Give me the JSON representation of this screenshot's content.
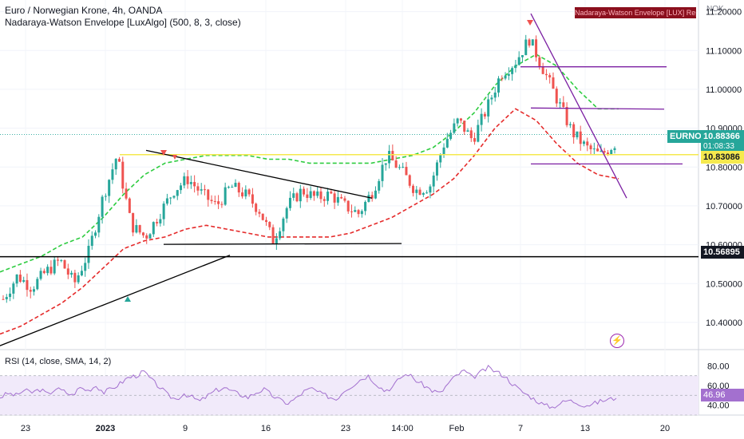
{
  "header": {
    "symbol_line": "Euro / Norwegian Krone, 4h, OANDA",
    "indicator_line": "Nadaraya-Watson Envelope [LuxAlgo] (500, 8, 3, close)",
    "repaint_badge": "Nadaraya-Watson Envelope [LUX] Repaints",
    "currency": "NOK"
  },
  "rsi_panel": {
    "title": "RSI (14, close, SMA, 14, 2)",
    "value_tag": "46.96"
  },
  "price_tags": {
    "symbol": "EURNOK",
    "last": "10.88366",
    "timer": "01:08:33",
    "yellow_level": "10.83086",
    "black_level": "10.56895"
  },
  "colors": {
    "up": "#26a69a",
    "down": "#ef5350",
    "upper_band": "#2ecc40",
    "lower_band": "#e52b2b",
    "trendline": "#000000",
    "channel": "#7b1fa2",
    "yellow": "#f5e94e",
    "rsi": "#a370cf"
  },
  "chart_data": [
    {
      "type": "candlestick",
      "title": "Euro / Norwegian Krone, 4h, OANDA",
      "y_ticks": [
        "11.20000",
        "11.10000",
        "11.00000",
        "10.90000",
        "10.80000",
        "10.70000",
        "10.60000",
        "10.50000",
        "10.40000"
      ],
      "x_ticks": [
        "23",
        "2023",
        "9",
        "16",
        "23",
        "14:00",
        "Feb",
        "7",
        "13",
        "20"
      ],
      "ylim": [
        10.33,
        11.23
      ],
      "ohlc_anchors": [
        [
          10.46,
          10.44
        ],
        [
          10.52,
          10.5
        ],
        [
          10.49,
          10.48
        ],
        [
          10.53,
          10.52
        ],
        [
          10.56,
          10.55
        ],
        [
          10.5,
          10.52
        ],
        [
          10.58,
          10.57
        ],
        [
          10.72,
          10.76
        ],
        [
          10.83,
          10.82
        ],
        [
          10.65,
          10.64
        ],
        [
          10.62,
          10.6
        ],
        [
          10.68,
          10.7
        ],
        [
          10.74,
          10.76
        ],
        [
          10.77,
          10.78
        ],
        [
          10.73,
          10.72
        ],
        [
          10.7,
          10.68
        ],
        [
          10.75,
          10.76
        ],
        [
          10.73,
          10.72
        ],
        [
          10.69,
          10.66
        ],
        [
          10.61,
          10.62
        ],
        [
          10.7,
          10.72
        ],
        [
          10.74,
          10.75
        ],
        [
          10.72,
          10.71
        ],
        [
          10.73,
          10.72
        ],
        [
          10.7,
          10.69
        ],
        [
          10.68,
          10.67
        ],
        [
          10.74,
          10.76
        ],
        [
          10.83,
          10.82
        ],
        [
          10.79,
          10.78
        ],
        [
          10.74,
          10.73
        ],
        [
          10.75,
          10.77
        ],
        [
          10.86,
          10.88
        ],
        [
          10.92,
          10.9
        ],
        [
          10.87,
          10.85
        ],
        [
          10.95,
          10.97
        ],
        [
          11.04,
          11.06
        ],
        [
          11.07,
          11.1
        ],
        [
          11.13,
          11.14
        ],
        [
          11.05,
          11.03
        ],
        [
          10.97,
          10.95
        ],
        [
          10.89,
          10.87
        ],
        [
          10.85,
          10.82
        ],
        [
          10.83,
          10.84
        ],
        [
          10.86,
          10.88
        ]
      ],
      "envelope_upper": [
        10.53,
        10.55,
        10.57,
        10.6,
        10.62,
        10.67,
        10.73,
        10.78,
        10.81,
        10.82,
        10.83,
        10.83,
        10.83,
        10.82,
        10.82,
        10.81,
        10.81,
        10.81,
        10.81,
        10.82,
        10.83,
        10.85,
        10.89,
        10.94,
        11.01,
        11.06,
        11.09,
        11.06,
        11.0,
        10.95,
        10.95
      ],
      "envelope_lower": [
        10.37,
        10.39,
        10.42,
        10.45,
        10.49,
        10.54,
        10.59,
        10.61,
        10.62,
        10.64,
        10.65,
        10.64,
        10.63,
        10.62,
        10.62,
        10.62,
        10.62,
        10.63,
        10.65,
        10.67,
        10.7,
        10.73,
        10.77,
        10.83,
        10.9,
        10.95,
        10.92,
        10.86,
        10.81,
        10.78,
        10.77
      ]
    },
    {
      "type": "line",
      "title": "RSI (14, close, SMA, 14, 2)",
      "y_ticks": [
        "80.00",
        "60.00",
        "40.00"
      ],
      "ylim": [
        30,
        90
      ],
      "values": [
        48,
        52,
        50,
        55,
        53,
        56,
        51,
        57,
        54,
        50,
        58,
        55,
        60,
        53,
        57,
        62,
        68,
        70,
        74,
        65,
        58,
        50,
        46,
        52,
        48,
        44,
        50,
        55,
        58,
        54,
        51,
        48,
        53,
        56,
        50,
        45,
        42,
        47,
        54,
        57,
        52,
        49,
        46,
        55,
        60,
        66,
        70,
        62,
        55,
        58,
        68,
        72,
        65,
        60,
        55,
        52,
        62,
        70,
        75,
        68,
        73,
        78,
        74,
        70,
        62,
        55,
        50,
        45,
        40,
        38,
        42,
        45,
        43,
        40,
        41,
        44,
        46,
        47
      ]
    }
  ]
}
